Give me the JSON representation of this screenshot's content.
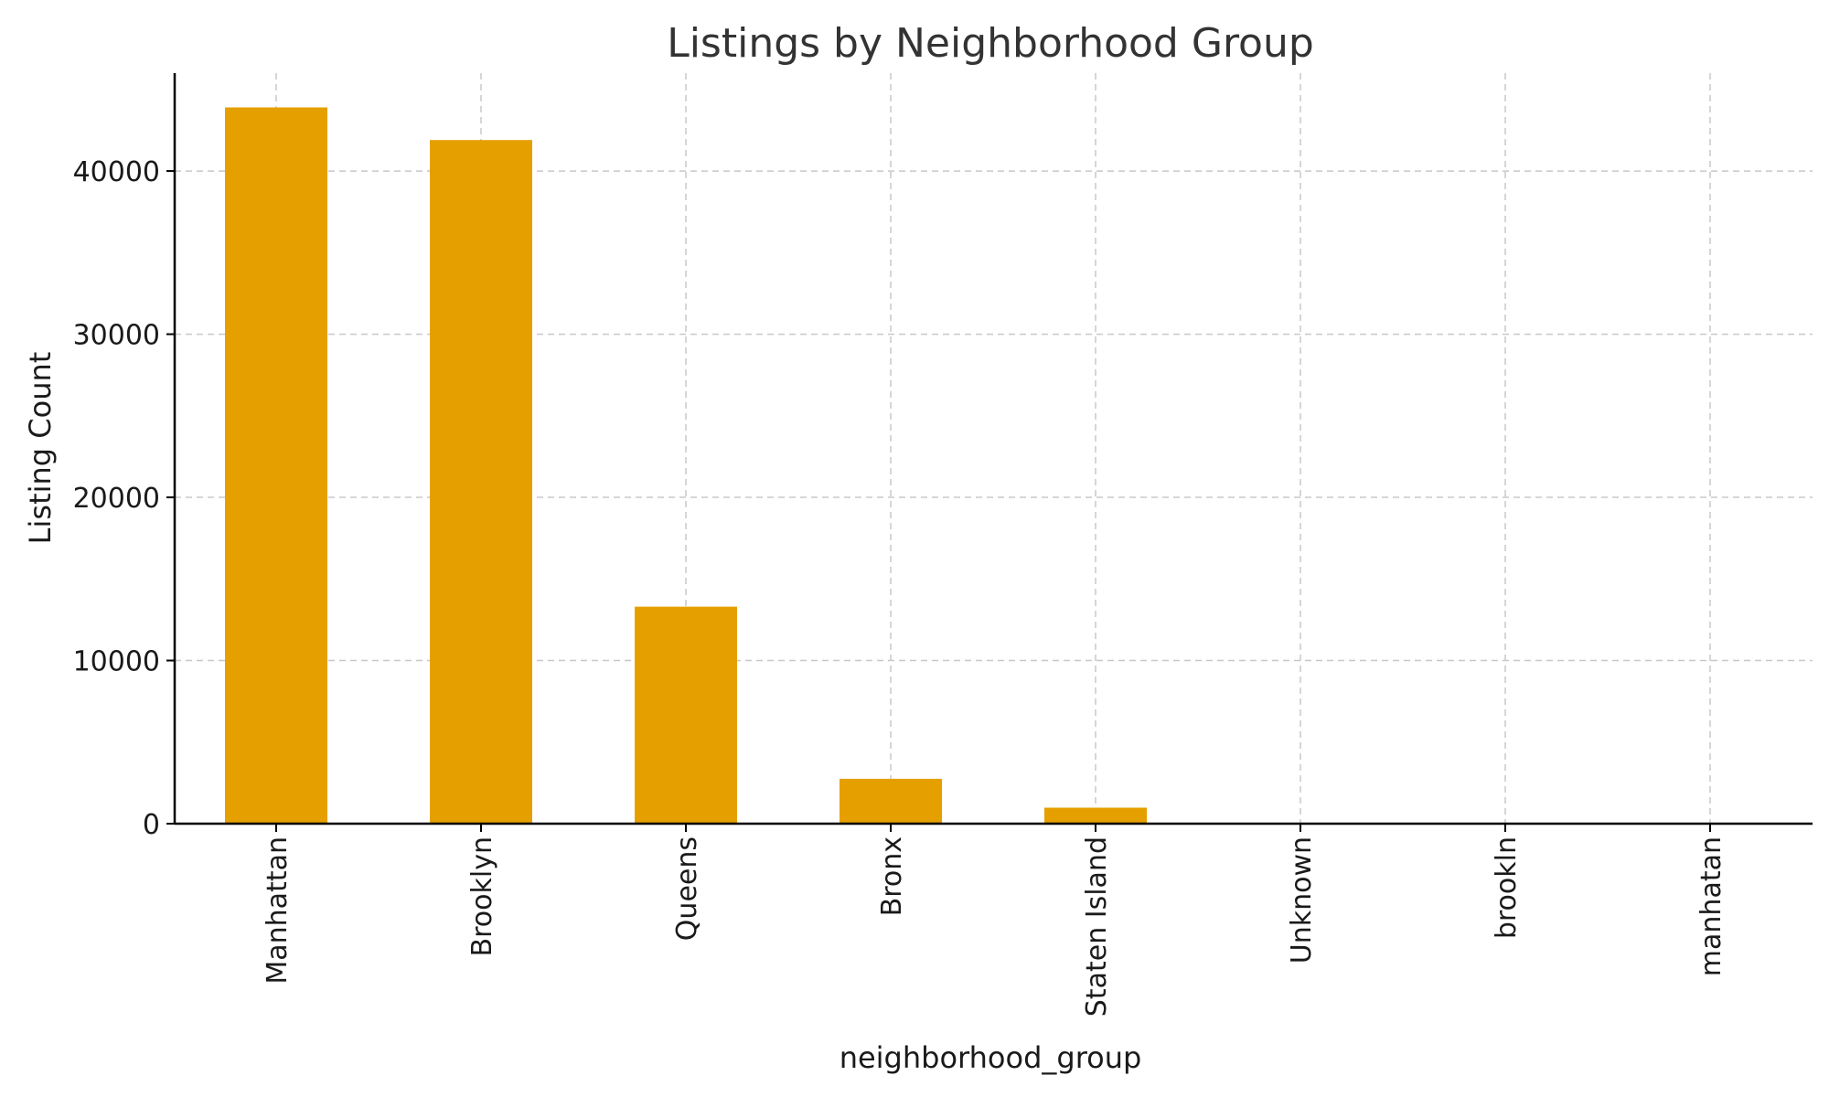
{
  "chart_data": {
    "type": "bar",
    "title": "Listings by Neighborhood Group",
    "xlabel": "neighborhood_group",
    "ylabel": "Listing Count",
    "categories": [
      "Manhattan",
      "Brooklyn",
      "Queens",
      "Bronx",
      "Staten Island",
      "Unknown",
      "brookln",
      "manhatan"
    ],
    "values": [
      43900,
      41900,
      13300,
      2750,
      980,
      2,
      1,
      1
    ],
    "ylim": [
      0,
      46000
    ],
    "yticks": [
      0,
      10000,
      20000,
      30000,
      40000
    ],
    "grid": true,
    "bar_color": "#E5A000"
  }
}
